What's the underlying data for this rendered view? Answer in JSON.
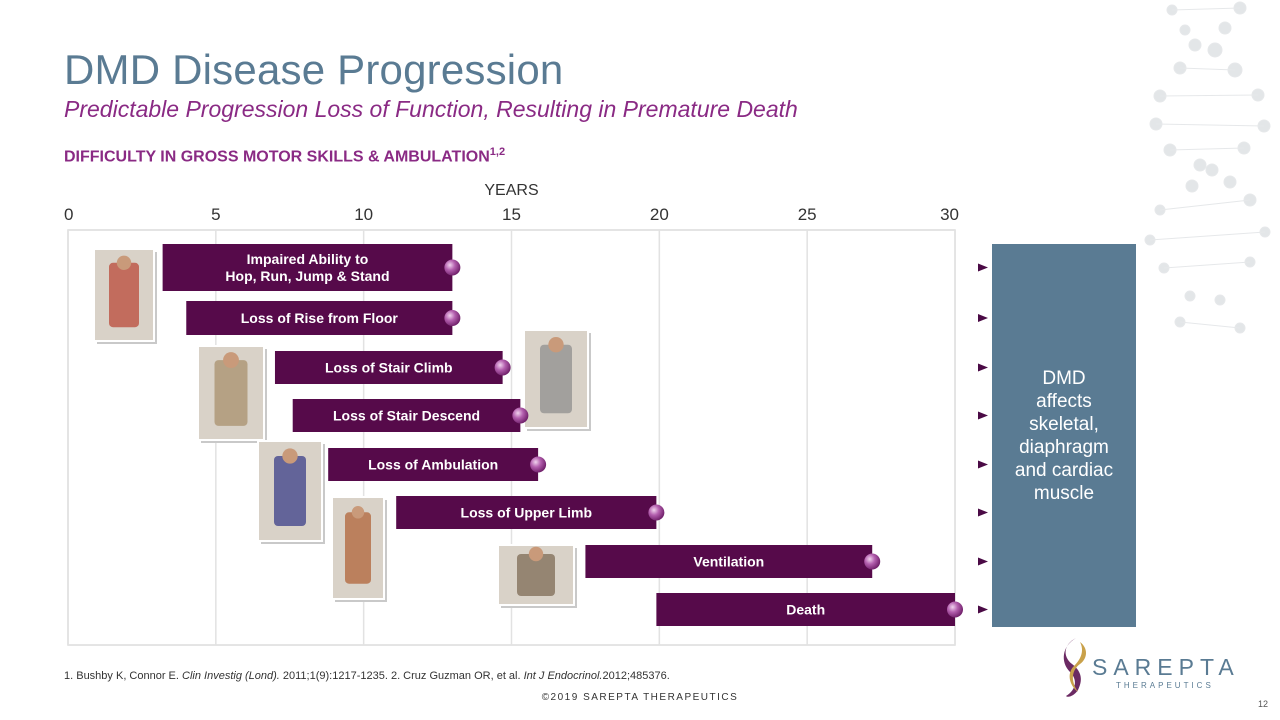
{
  "title": "DMD Disease Progression",
  "subtitle": "Predictable Progression Loss of Function, Resulting in Premature Death",
  "section_label": "DIFFICULTY IN GROSS MOTOR SKILLS & AMBULATION",
  "section_sup": "1,2",
  "axis": {
    "label": "YEARS",
    "ticks": [
      "0",
      "5",
      "10",
      "15",
      "20",
      "25",
      "30"
    ],
    "min": 0,
    "max": 30
  },
  "milestones": [
    {
      "lines": [
        "Impaired Ability to",
        "Hop, Run, Jump & Stand"
      ],
      "start": 3.2,
      "end": 13.0
    },
    {
      "lines": [
        "Loss of Rise from Floor"
      ],
      "start": 4.0,
      "end": 13.0
    },
    {
      "lines": [
        "Loss of Stair Climb"
      ],
      "start": 7.0,
      "end": 14.7
    },
    {
      "lines": [
        "Loss of Stair Descend"
      ],
      "start": 7.6,
      "end": 15.3
    },
    {
      "lines": [
        "Loss of Ambulation"
      ],
      "start": 8.8,
      "end": 15.9
    },
    {
      "lines": [
        "Loss of Upper Limb"
      ],
      "start": 11.1,
      "end": 19.9
    },
    {
      "lines": [
        "Ventilation"
      ],
      "start": 17.5,
      "end": 27.2
    },
    {
      "lines": [
        "Death"
      ],
      "start": 19.9,
      "end": 30.0
    }
  ],
  "dmd_box": [
    "DMD",
    "affects",
    "skeletal,",
    "diaphragm",
    "and cardiac",
    "muscle"
  ],
  "photos": [
    "boy-standing-photo",
    "stair-climb-photo",
    "boy-walking-photo",
    "wheelchair-photo",
    "upper-limb-photo",
    "ventilation-photo"
  ],
  "footnote": {
    "p1": "1. Bushby K, Connor E. ",
    "j1": "Clin Investig (Lond).",
    "p2": " 2011;1(9):1217-1235. 2. Cruz Guzman OR, et al. ",
    "j2": "Int J Endocrinol.",
    "p3": "2012;485376."
  },
  "copyright": "©2019 SAREPTA THERAPEUTICS",
  "page_number": "12",
  "logo": {
    "word": "SAREPTA",
    "sub": "THERAPEUTICS"
  },
  "colors": {
    "title": "#5a7b93",
    "accent": "#8a2a84",
    "bar": "#560a4a",
    "box": "#5a7b93"
  }
}
